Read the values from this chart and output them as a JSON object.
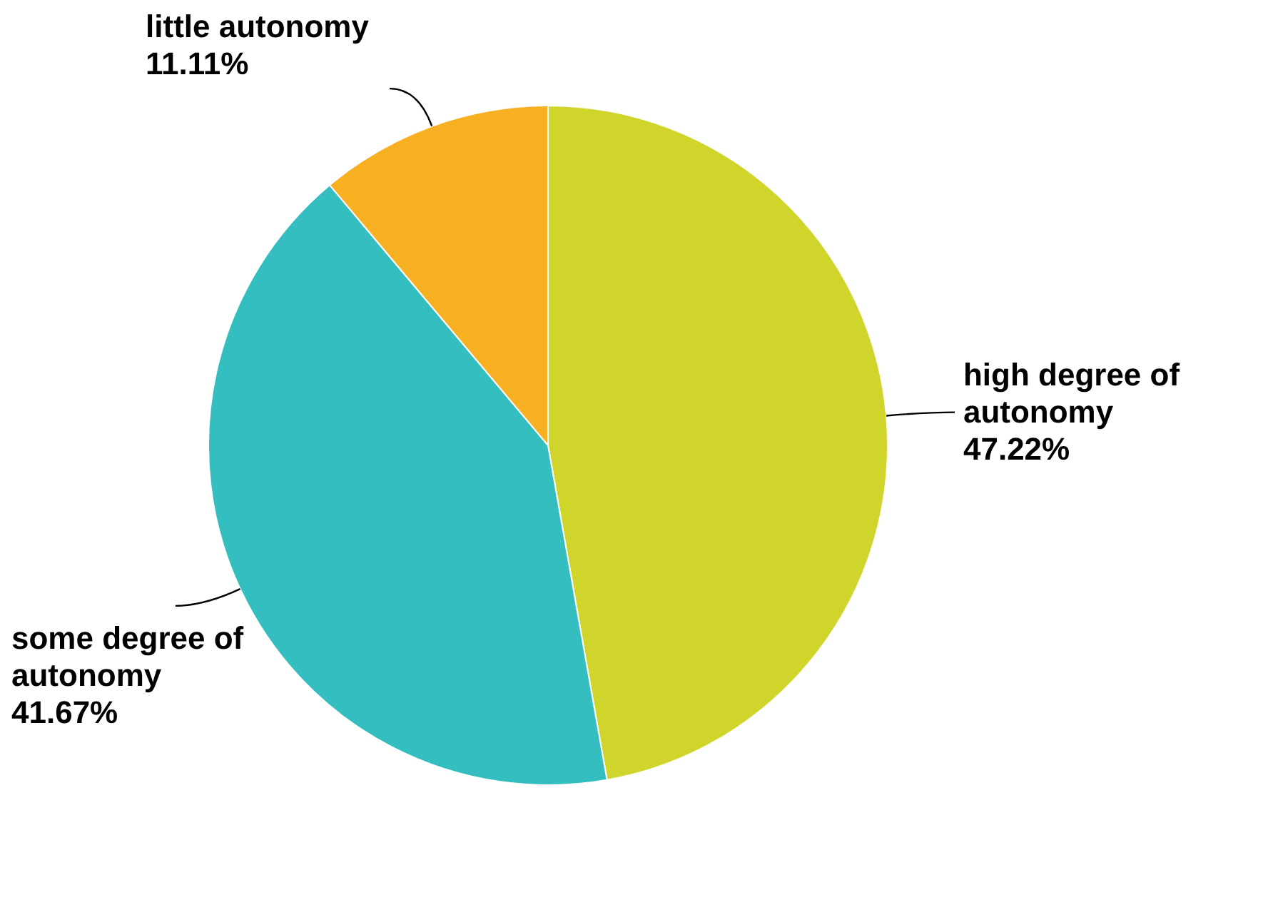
{
  "chart_data": {
    "type": "pie",
    "categories": [
      "high degree of autonomy",
      "some degree of autonomy",
      "little autonomy"
    ],
    "values": [
      47.22,
      41.67,
      11.11
    ],
    "colors": [
      "#cfd52a",
      "#35bec0",
      "#f6b021"
    ],
    "value_labels": [
      "47.22%",
      "41.67%",
      "11.11%"
    ]
  }
}
